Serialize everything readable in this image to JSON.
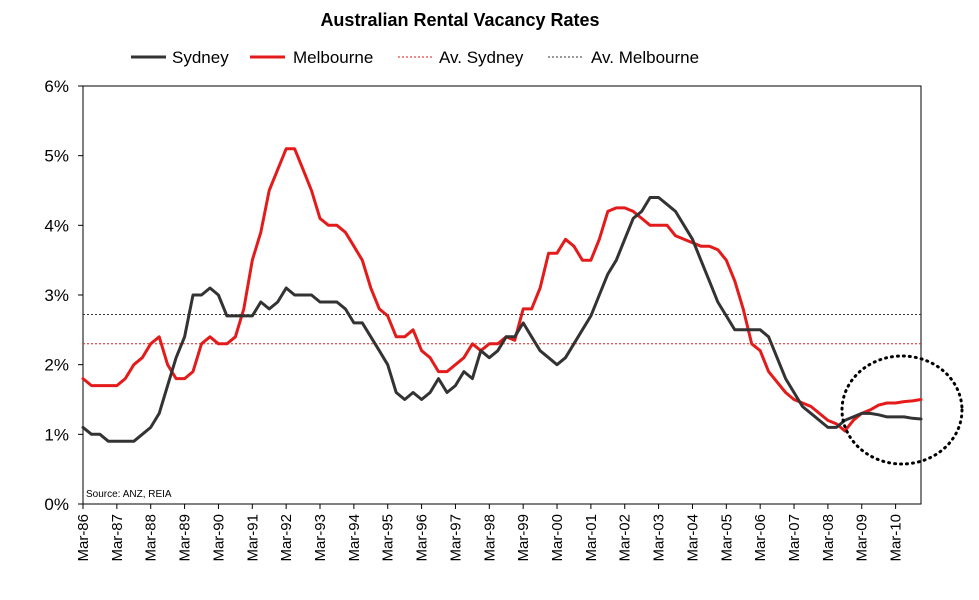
{
  "chart_data": {
    "type": "line",
    "title": "Australian Rental Vacancy Rates",
    "source": "Source: ANZ, REIA",
    "ylim": [
      0,
      6
    ],
    "y_ticks": [
      "0%",
      "1%",
      "2%",
      "3%",
      "4%",
      "5%",
      "6%"
    ],
    "x_tick_labels": [
      "Mar-86",
      "Mar-87",
      "Mar-88",
      "Mar-89",
      "Mar-90",
      "Mar-91",
      "Mar-92",
      "Mar-93",
      "Mar-94",
      "Mar-95",
      "Mar-96",
      "Mar-97",
      "Mar-98",
      "Mar-99",
      "Mar-00",
      "Mar-01",
      "Mar-02",
      "Mar-03",
      "Mar-04",
      "Mar-05",
      "Mar-06",
      "Mar-07",
      "Mar-08",
      "Mar-09",
      "Mar-10"
    ],
    "x_range": [
      "Mar-86",
      "Dec-10"
    ],
    "grid": false,
    "legend_position": "top",
    "colors": {
      "sydney": "#333333",
      "melbourne": "#e41b1b",
      "av_sydney": "#e41b1b",
      "av_melbourne": "#333333"
    },
    "annotation": "dotted circle highlighting 2009-2010 data",
    "series": [
      {
        "name": "Sydney",
        "style": "solid",
        "x": [
          "1986-03",
          "1986-06",
          "1986-09",
          "1986-12",
          "1987-03",
          "1987-06",
          "1987-09",
          "1987-12",
          "1988-03",
          "1988-06",
          "1988-09",
          "1988-12",
          "1989-03",
          "1989-06",
          "1989-09",
          "1989-12",
          "1990-03",
          "1990-06",
          "1990-09",
          "1990-12",
          "1991-03",
          "1991-06",
          "1991-09",
          "1991-12",
          "1992-03",
          "1992-06",
          "1992-09",
          "1992-12",
          "1993-03",
          "1993-06",
          "1993-09",
          "1993-12",
          "1994-03",
          "1994-06",
          "1994-09",
          "1994-12",
          "1995-03",
          "1995-06",
          "1995-09",
          "1995-12",
          "1996-03",
          "1996-06",
          "1996-09",
          "1996-12",
          "1997-03",
          "1997-06",
          "1997-09",
          "1997-12",
          "1998-03",
          "1998-06",
          "1998-09",
          "1998-12",
          "1999-03",
          "1999-06",
          "1999-09",
          "1999-12",
          "2000-03",
          "2000-06",
          "2000-09",
          "2000-12",
          "2001-03",
          "2001-06",
          "2001-09",
          "2001-12",
          "2002-03",
          "2002-06",
          "2002-09",
          "2002-12",
          "2003-03",
          "2003-06",
          "2003-09",
          "2003-12",
          "2004-03",
          "2004-06",
          "2004-09",
          "2004-12",
          "2005-03",
          "2005-06",
          "2005-09",
          "2005-12",
          "2006-03",
          "2006-06",
          "2006-09",
          "2006-12",
          "2007-03",
          "2007-06",
          "2007-09",
          "2007-12",
          "2008-03",
          "2008-06",
          "2008-09",
          "2008-12",
          "2009-03",
          "2009-06",
          "2009-09",
          "2009-12",
          "2010-03",
          "2010-06",
          "2010-09",
          "2010-12"
        ],
        "values": [
          1.1,
          1.0,
          1.0,
          0.9,
          0.9,
          0.9,
          0.9,
          1.0,
          1.1,
          1.3,
          1.7,
          2.1,
          2.4,
          3.0,
          3.0,
          3.1,
          3.0,
          2.7,
          2.7,
          2.7,
          2.7,
          2.9,
          2.8,
          2.9,
          3.1,
          3.0,
          3.0,
          3.0,
          2.9,
          2.9,
          2.9,
          2.8,
          2.6,
          2.6,
          2.4,
          2.2,
          2.0,
          1.6,
          1.5,
          1.6,
          1.5,
          1.6,
          1.8,
          1.6,
          1.7,
          1.9,
          1.8,
          2.2,
          2.1,
          2.2,
          2.4,
          2.4,
          2.6,
          2.4,
          2.2,
          2.1,
          2.0,
          2.1,
          2.3,
          2.5,
          2.7,
          3.0,
          3.3,
          3.5,
          3.8,
          4.1,
          4.2,
          4.4,
          4.4,
          4.3,
          4.2,
          4.0,
          3.8,
          3.5,
          3.2,
          2.9,
          2.7,
          2.5,
          2.5,
          2.5,
          2.5,
          2.4,
          2.1,
          1.8,
          1.6,
          1.4,
          1.3,
          1.2,
          1.1,
          1.1,
          1.2,
          1.25,
          1.3,
          1.3,
          1.28,
          1.25,
          1.25,
          1.25,
          1.23,
          1.22
        ]
      },
      {
        "name": "Melbourne",
        "style": "solid",
        "x": [
          "1986-03",
          "1986-06",
          "1986-09",
          "1986-12",
          "1987-03",
          "1987-06",
          "1987-09",
          "1987-12",
          "1988-03",
          "1988-06",
          "1988-09",
          "1988-12",
          "1989-03",
          "1989-06",
          "1989-09",
          "1989-12",
          "1990-03",
          "1990-06",
          "1990-09",
          "1990-12",
          "1991-03",
          "1991-06",
          "1991-09",
          "1991-12",
          "1992-03",
          "1992-06",
          "1992-09",
          "1992-12",
          "1993-03",
          "1993-06",
          "1993-09",
          "1993-12",
          "1994-03",
          "1994-06",
          "1994-09",
          "1994-12",
          "1995-03",
          "1995-06",
          "1995-09",
          "1995-12",
          "1996-03",
          "1996-06",
          "1996-09",
          "1996-12",
          "1997-03",
          "1997-06",
          "1997-09",
          "1997-12",
          "1998-03",
          "1998-06",
          "1998-09",
          "1998-12",
          "1999-03",
          "1999-06",
          "1999-09",
          "1999-12",
          "2000-03",
          "2000-06",
          "2000-09",
          "2000-12",
          "2001-03",
          "2001-06",
          "2001-09",
          "2001-12",
          "2002-03",
          "2002-06",
          "2002-09",
          "2002-12",
          "2003-03",
          "2003-06",
          "2003-09",
          "2003-12",
          "2004-03",
          "2004-06",
          "2004-09",
          "2004-12",
          "2005-03",
          "2005-06",
          "2005-09",
          "2005-12",
          "2006-03",
          "2006-06",
          "2006-09",
          "2006-12",
          "2007-03",
          "2007-06",
          "2007-09",
          "2007-12",
          "2008-03",
          "2008-06",
          "2008-09",
          "2008-12",
          "2009-03",
          "2009-06",
          "2009-09",
          "2009-12",
          "2010-03",
          "2010-06",
          "2010-09",
          "2010-12"
        ],
        "values": [
          1.8,
          1.7,
          1.7,
          1.7,
          1.7,
          1.8,
          2.0,
          2.1,
          2.3,
          2.4,
          2.0,
          1.8,
          1.8,
          1.9,
          2.3,
          2.4,
          2.3,
          2.3,
          2.4,
          2.8,
          3.5,
          3.9,
          4.5,
          4.8,
          5.1,
          5.1,
          4.8,
          4.5,
          4.1,
          4.0,
          4.0,
          3.9,
          3.7,
          3.5,
          3.1,
          2.8,
          2.7,
          2.4,
          2.4,
          2.5,
          2.2,
          2.1,
          1.9,
          1.9,
          2.0,
          2.1,
          2.3,
          2.2,
          2.3,
          2.3,
          2.4,
          2.35,
          2.8,
          2.8,
          3.1,
          3.6,
          3.6,
          3.8,
          3.7,
          3.5,
          3.5,
          3.8,
          4.2,
          4.25,
          4.25,
          4.2,
          4.1,
          4.0,
          4.0,
          4.0,
          3.85,
          3.8,
          3.75,
          3.7,
          3.7,
          3.65,
          3.5,
          3.2,
          2.8,
          2.3,
          2.2,
          1.9,
          1.75,
          1.6,
          1.5,
          1.45,
          1.4,
          1.3,
          1.2,
          1.15,
          1.05,
          1.2,
          1.3,
          1.35,
          1.42,
          1.45,
          1.45,
          1.47,
          1.48,
          1.5
        ]
      },
      {
        "name": "Av. Sydney",
        "style": "dotted",
        "constant": 2.3
      },
      {
        "name": "Av. Melbourne",
        "style": "dotted",
        "constant": 2.72
      }
    ]
  }
}
